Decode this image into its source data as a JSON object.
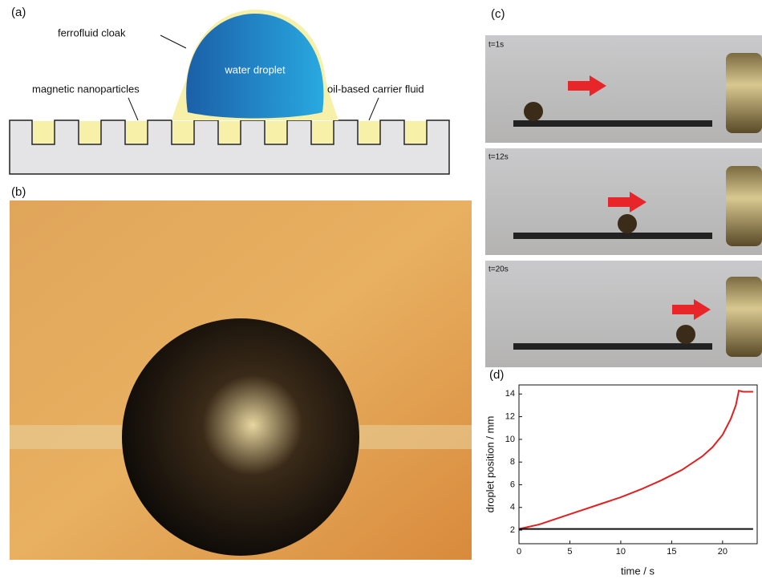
{
  "figure": {
    "a": {
      "label": "(a)",
      "cloak": "ferrofluid cloak",
      "droplet": "water droplet",
      "particles": "magnetic nanoparticles",
      "carrier": "oil-based carrier fluid"
    },
    "b": {
      "label": "(b)"
    },
    "c": {
      "label": "(c)",
      "frames": [
        "t=1s",
        "t=12s",
        "t=20s"
      ]
    },
    "d": {
      "label": "(d)"
    }
  },
  "chart_data": {
    "type": "line",
    "x_label": "time / s",
    "y_label": "droplet position / mm",
    "xlim": [
      0,
      23.4
    ],
    "ylim": [
      0.8,
      14.8
    ],
    "xticks": [
      0,
      5,
      10,
      15,
      20
    ],
    "yticks": [
      2,
      4,
      6,
      8,
      10,
      12,
      14
    ],
    "series": [
      {
        "color": "#e02020",
        "x": [
          0,
          2,
          4,
          6,
          8,
          10,
          12,
          14,
          16,
          18,
          19,
          20,
          20.8,
          21.3,
          21.6,
          22,
          23
        ],
        "values": [
          2.1,
          2.5,
          3.1,
          3.7,
          4.3,
          4.9,
          5.6,
          6.4,
          7.3,
          8.5,
          9.3,
          10.4,
          11.8,
          13,
          14.3,
          14.2,
          14.2
        ]
      },
      {
        "color": "#111111",
        "x": [
          0,
          23
        ],
        "values": [
          2.1,
          2.1
        ]
      }
    ]
  }
}
